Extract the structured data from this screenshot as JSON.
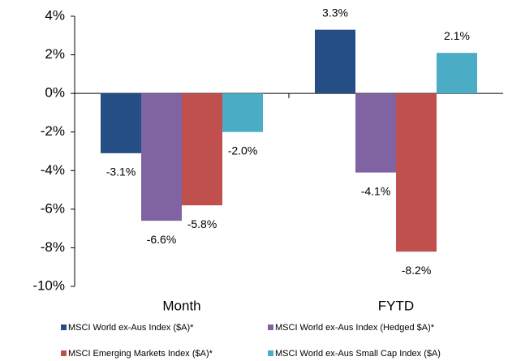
{
  "chart_data": {
    "type": "bar",
    "categories": [
      "Month",
      "FYTD"
    ],
    "series": [
      {
        "name": "MSCI World ex-Aus Index ($A)*",
        "color": "#254e86",
        "values": [
          -3.1,
          3.3
        ],
        "value_labels": [
          "-3.1%",
          "3.3%"
        ]
      },
      {
        "name": "MSCI World ex-Aus Index (Hedged $A)*",
        "color": "#8064a2",
        "values": [
          -6.6,
          -4.1
        ],
        "value_labels": [
          "-6.6%",
          "-4.1%"
        ]
      },
      {
        "name": "MSCI Emerging Markets Index ($A)*",
        "color": "#c0504d",
        "values": [
          -5.8,
          -8.2
        ],
        "value_labels": [
          "-5.8%",
          "-8.2%"
        ]
      },
      {
        "name": "MSCI World ex-Aus Small Cap Index ($A)",
        "color": "#4bacc6",
        "values": [
          -2.0,
          2.1
        ],
        "value_labels": [
          "-2.0%",
          "2.1%"
        ]
      }
    ],
    "ylim": [
      -10,
      4
    ],
    "yticks": [
      {
        "value": -10,
        "label": "-10%"
      },
      {
        "value": -8,
        "label": "-8%"
      },
      {
        "value": -6,
        "label": "-6%"
      },
      {
        "value": -4,
        "label": "-4%"
      },
      {
        "value": -2,
        "label": "-2%"
      },
      {
        "value": 0,
        "label": "0%"
      },
      {
        "value": 2,
        "label": "2%"
      },
      {
        "value": 4,
        "label": "4%"
      }
    ],
    "grid": false,
    "legend": "bottom"
  }
}
